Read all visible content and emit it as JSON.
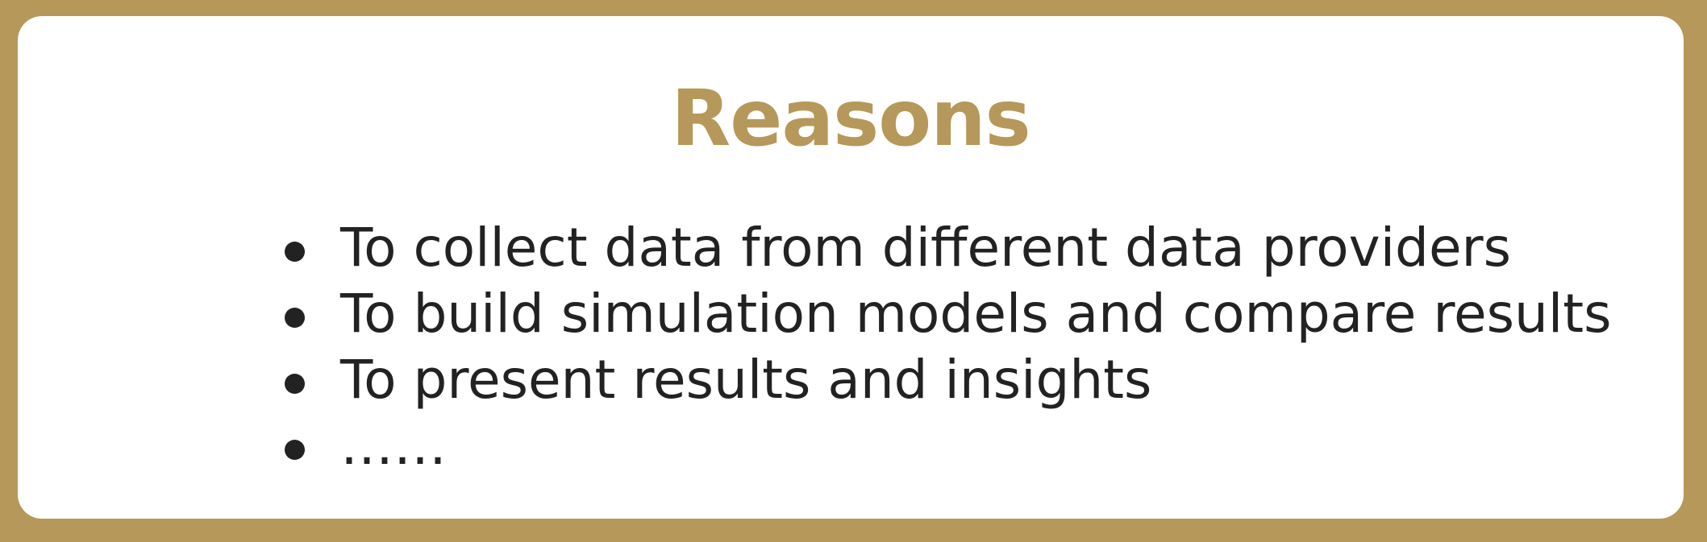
{
  "title": "Reasons",
  "items": [
    "To collect data from different data providers",
    "To build simulation models and compare results",
    "To present results and insights",
    "……"
  ],
  "colors": {
    "accent": "#b5985a",
    "text": "#222222",
    "card": "#ffffff"
  }
}
